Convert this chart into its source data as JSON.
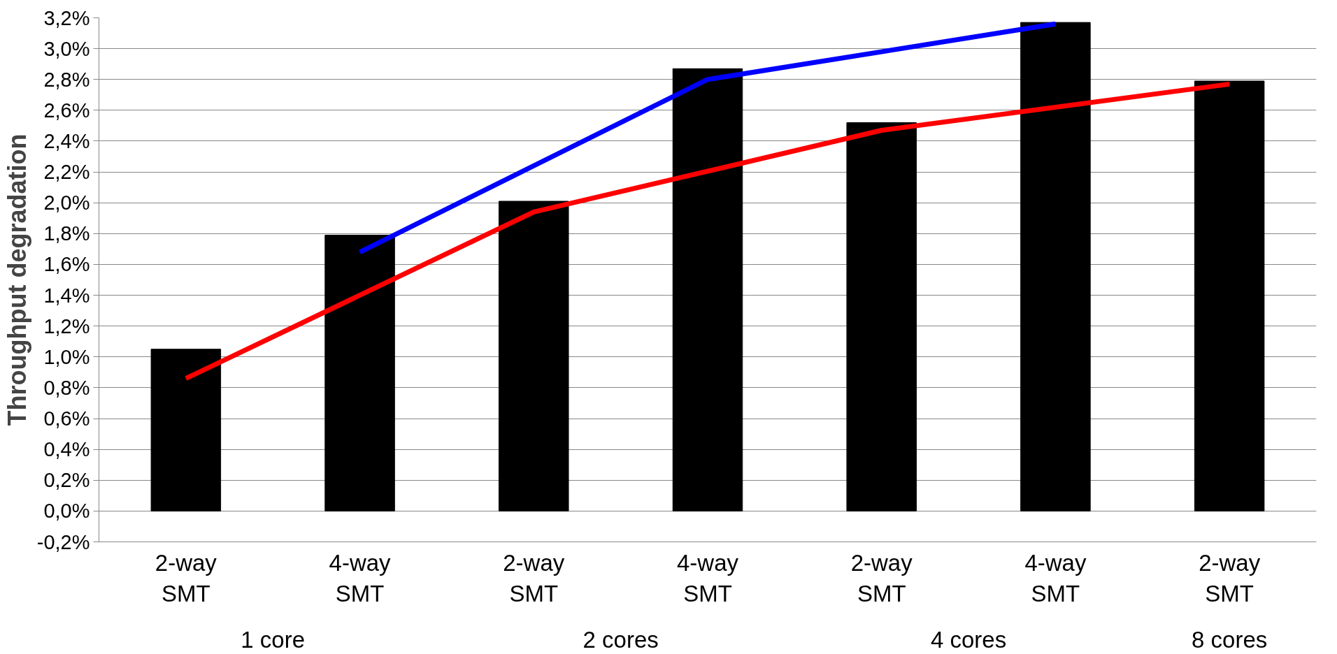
{
  "chart_data": {
    "type": "bar",
    "ylabel": "Throughput degradation",
    "categories": [
      "2-way\nSMT",
      "4-way\nSMT",
      "2-way\nSMT",
      "4-way\nSMT",
      "2-way\nSMT",
      "4-way\nSMT",
      "2-way\nSMT"
    ],
    "series": [
      {
        "color": "#000000",
        "values": [
          1.05,
          1.79,
          2.01,
          2.87,
          2.52,
          3.17,
          2.79
        ]
      },
      {
        "type": "line",
        "color": "#ff0000",
        "values": [
          0.86,
          null,
          1.94,
          null,
          2.47,
          null,
          2.77
        ]
      },
      {
        "type": "line",
        "color": "#0000ff",
        "values": [
          null,
          1.68,
          null,
          2.8,
          null,
          3.16,
          null
        ]
      }
    ],
    "annotations": [
      "1 core",
      "2 cores",
      "4 cores",
      "8 cores"
    ],
    "ylim": [
      -0.2,
      3.2
    ],
    "yticks": [
      {
        "value": -0.2,
        "label": "-0,2%"
      },
      {
        "value": 0,
        "label": "0,0%"
      },
      {
        "value": 0.2,
        "label": "0,2%"
      },
      {
        "value": 0.4,
        "label": "0,4%"
      },
      {
        "value": 0.6,
        "label": "0,6%"
      },
      {
        "value": 0.8,
        "label": "0,8%"
      },
      {
        "value": 1.0,
        "label": "1,0%"
      },
      {
        "value": 1.2,
        "label": "1,2%"
      },
      {
        "value": 1.4,
        "label": "1,4%"
      },
      {
        "value": 1.6,
        "label": "1,6%"
      },
      {
        "value": 1.8,
        "label": "1,8%"
      },
      {
        "value": 2.0,
        "label": "2,0%"
      },
      {
        "value": 2.2,
        "label": "2,2%"
      },
      {
        "value": 2.4,
        "label": "2,4%"
      },
      {
        "value": 2.6,
        "label": "2,6%"
      },
      {
        "value": 2.8,
        "label": "2,8%"
      },
      {
        "value": 3.0,
        "label": "3,0%"
      },
      {
        "value": 3.2,
        "label": "3,2%"
      }
    ],
    "grid": "y",
    "line_style": "solid",
    "marker": "none"
  }
}
